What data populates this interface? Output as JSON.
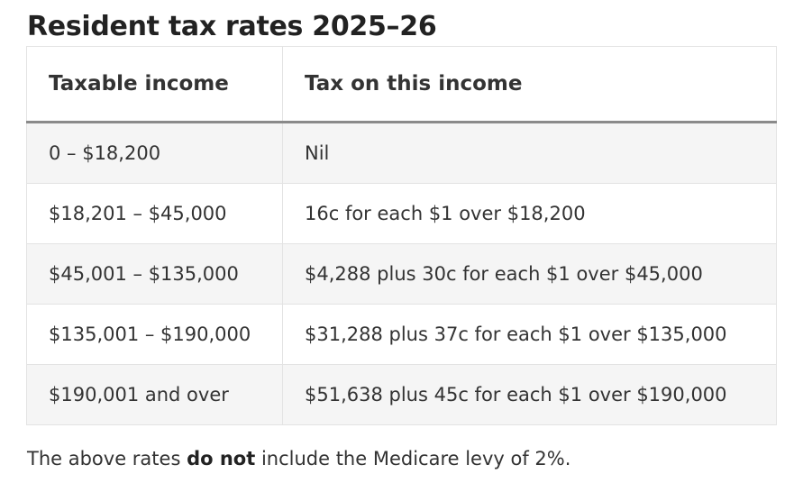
{
  "title": "Resident tax rates 2025–26",
  "table": {
    "headers": [
      "Taxable income",
      "Tax on this income"
    ],
    "rows": [
      [
        "0 – $18,200",
        "Nil"
      ],
      [
        "$18,201 – $45,000",
        "16c for each $1 over $18,200"
      ],
      [
        "$45,001 – $135,000",
        "$4,288 plus 30c for each $1 over $45,000"
      ],
      [
        "$135,001 – $190,000",
        "$31,288 plus 37c for each $1 over $135,000"
      ],
      [
        "$190,001 and over",
        "$51,638 plus 45c for each $1 over $190,000"
      ]
    ]
  },
  "note": {
    "before": "The above rates ",
    "bold": "do not",
    "after": " include the Medicare levy of 2%."
  },
  "colors": {
    "text": "#333333",
    "stripe": "#f5f5f5",
    "border": "#e3e3e3",
    "header_rule": "#8a8a8a"
  }
}
